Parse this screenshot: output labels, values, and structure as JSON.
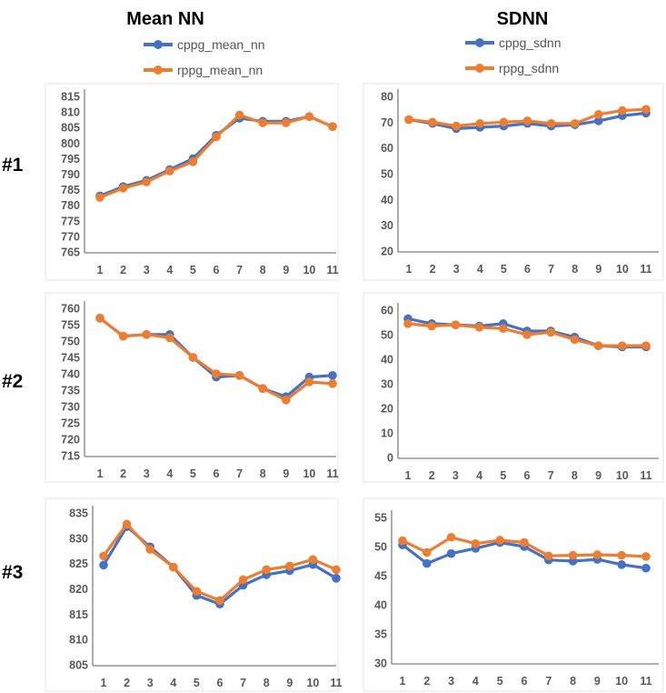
{
  "colors": {
    "cppg": "#4472C4",
    "rppg": "#ED7D31"
  },
  "columns": [
    {
      "title": "Mean NN",
      "legend": [
        "cppg_mean_nn",
        "rppg_mean_nn"
      ]
    },
    {
      "title": "SDNN",
      "legend": [
        "cppg_sdnn",
        "rppg_sdnn"
      ]
    }
  ],
  "rows": [
    "#1",
    "#2",
    "#3"
  ],
  "chart_data": [
    {
      "type": "line",
      "row": "#1",
      "metric": "Mean NN",
      "x": [
        1,
        2,
        3,
        4,
        5,
        6,
        7,
        8,
        9,
        10,
        11
      ],
      "ylim": [
        765,
        815
      ],
      "yticks": [
        765,
        770,
        775,
        780,
        785,
        790,
        795,
        800,
        805,
        810,
        815
      ],
      "series": [
        {
          "name": "cppg_mean_nn",
          "values": [
            783,
            786,
            788,
            791.5,
            795,
            802.5,
            808,
            807,
            807,
            808.5,
            805.3
          ]
        },
        {
          "name": "rppg_mean_nn",
          "values": [
            782.5,
            785.5,
            787.5,
            791,
            794,
            802,
            809,
            806.5,
            806.5,
            808.5,
            805.3
          ]
        }
      ]
    },
    {
      "type": "line",
      "row": "#1",
      "metric": "SDNN",
      "x": [
        1,
        2,
        3,
        4,
        5,
        6,
        7,
        8,
        9,
        10,
        11
      ],
      "ylim": [
        20,
        80
      ],
      "yticks": [
        20,
        30,
        40,
        50,
        60,
        70,
        80
      ],
      "series": [
        {
          "name": "cppg_sdnn",
          "values": [
            71,
            69.5,
            67.5,
            68,
            68.5,
            69.5,
            68.5,
            69,
            70.5,
            72.5,
            73.5
          ]
        },
        {
          "name": "rppg_sdnn",
          "values": [
            71,
            70,
            68.5,
            69.5,
            70,
            70.5,
            69.5,
            69.5,
            73,
            74.5,
            75
          ]
        }
      ]
    },
    {
      "type": "line",
      "row": "#2",
      "metric": "Mean NN",
      "x": [
        1,
        2,
        3,
        4,
        5,
        6,
        7,
        8,
        9,
        10,
        11
      ],
      "ylim": [
        715,
        760
      ],
      "yticks": [
        715,
        720,
        725,
        730,
        735,
        740,
        745,
        750,
        755,
        760
      ],
      "series": [
        {
          "name": "cppg_mean_nn",
          "values": [
            757,
            751.5,
            752,
            752,
            745,
            739,
            739.5,
            735.5,
            733,
            739,
            739.5
          ]
        },
        {
          "name": "rppg_mean_nn",
          "values": [
            757,
            751.5,
            752,
            751,
            745,
            740,
            739.5,
            735.5,
            732,
            737.5,
            737
          ]
        }
      ]
    },
    {
      "type": "line",
      "row": "#2",
      "metric": "SDNN",
      "x": [
        1,
        2,
        3,
        4,
        5,
        6,
        7,
        8,
        9,
        10,
        11
      ],
      "ylim": [
        0,
        60
      ],
      "yticks": [
        0,
        10,
        20,
        30,
        40,
        50,
        60
      ],
      "series": [
        {
          "name": "cppg_sdnn",
          "values": [
            56.5,
            54.5,
            54,
            53.5,
            54.5,
            51.5,
            51.5,
            49,
            45.5,
            45,
            45
          ]
        },
        {
          "name": "rppg_sdnn",
          "values": [
            54.5,
            53.5,
            54,
            53,
            52.5,
            50,
            51,
            48,
            45.5,
            45.5,
            45.5
          ]
        }
      ]
    },
    {
      "type": "line",
      "row": "#3",
      "metric": "Mean NN",
      "x": [
        1,
        2,
        3,
        4,
        5,
        6,
        7,
        8,
        9,
        10,
        11
      ],
      "ylim": [
        805,
        835
      ],
      "yticks": [
        805,
        810,
        815,
        820,
        825,
        830,
        835
      ],
      "series": [
        {
          "name": "cppg_mean_nn",
          "values": [
            824.7,
            832.3,
            828.3,
            824.3,
            818.7,
            817,
            820.7,
            822.8,
            823.6,
            824.8,
            822.1
          ]
        },
        {
          "name": "rppg_mean_nn",
          "values": [
            826.5,
            832.8,
            827.8,
            824.3,
            819.5,
            817.7,
            821.8,
            823.8,
            824.5,
            825.8,
            823.8
          ]
        }
      ]
    },
    {
      "type": "line",
      "row": "#3",
      "metric": "SDNN",
      "x": [
        1,
        2,
        3,
        4,
        5,
        6,
        7,
        8,
        9,
        10,
        11
      ],
      "ylim": [
        30,
        55
      ],
      "yticks": [
        30,
        35,
        40,
        45,
        50,
        55
      ],
      "series": [
        {
          "name": "cppg_sdnn",
          "values": [
            50.3,
            47.1,
            48.8,
            49.7,
            50.7,
            50,
            47.7,
            47.5,
            47.8,
            46.9,
            46.3
          ]
        },
        {
          "name": "rppg_sdnn",
          "values": [
            51,
            49,
            51.6,
            50.5,
            51.1,
            50.7,
            48.4,
            48.5,
            48.6,
            48.5,
            48.3
          ]
        }
      ]
    }
  ]
}
